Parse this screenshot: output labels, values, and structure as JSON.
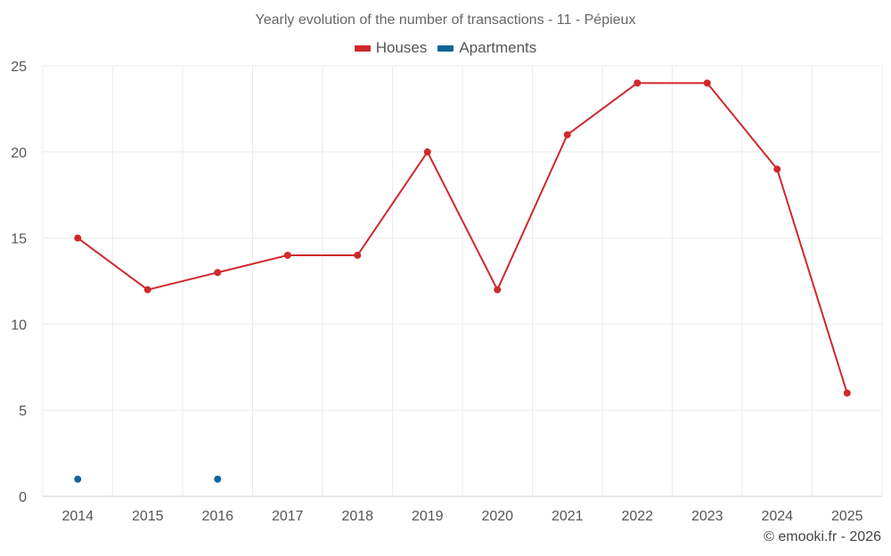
{
  "chart_data": {
    "type": "line",
    "title": "Yearly evolution of the number of transactions - 11 - Pépieux",
    "categories": [
      "2014",
      "2015",
      "2016",
      "2017",
      "2018",
      "2019",
      "2020",
      "2021",
      "2022",
      "2023",
      "2024",
      "2025"
    ],
    "ylim": [
      0,
      25
    ],
    "yticks": [
      0,
      5,
      10,
      15,
      20,
      25
    ],
    "grid": true,
    "legend_position": "top-center",
    "series": [
      {
        "name": "Houses",
        "color": "#d0282c",
        "values": [
          15,
          12,
          13,
          14,
          14,
          20,
          12,
          21,
          24,
          24,
          19,
          6
        ]
      },
      {
        "name": "Apartments",
        "color": "#0f6699",
        "values": [
          1,
          null,
          1,
          null,
          null,
          null,
          null,
          null,
          null,
          null,
          null,
          null
        ]
      }
    ]
  },
  "credit": "© emooki.fr - 2026"
}
